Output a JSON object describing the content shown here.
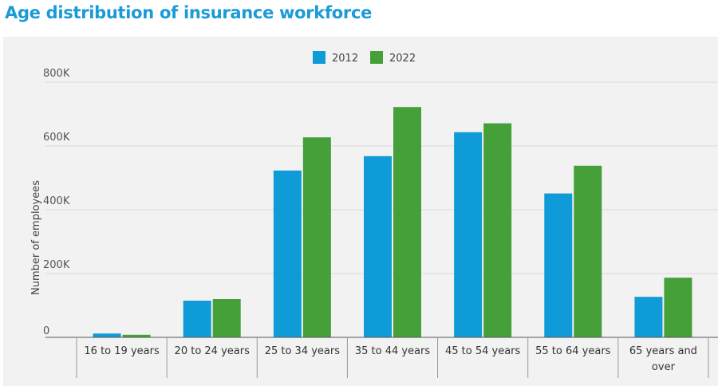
{
  "title": "Age distribution of insurance workforce",
  "chart_data": {
    "type": "bar",
    "title": "Age distribution of insurance workforce",
    "xlabel": "",
    "ylabel": "Number of employees",
    "ylim": [
      0,
      800000
    ],
    "y_ticks": [
      0,
      200000,
      400000,
      600000,
      800000
    ],
    "y_tick_labels": [
      "0",
      "200K",
      "400K",
      "600K",
      "800K"
    ],
    "grid": true,
    "legend_position": "top-center",
    "categories": [
      "16 to 19 years",
      "20 to 24 years",
      "25 to 34 years",
      "35 to 44 years",
      "45 to 54 years",
      "55 to 64 years",
      "65 years and over"
    ],
    "series": [
      {
        "name": "2012",
        "color": "#0f9ad8",
        "values": [
          12000,
          115000,
          523000,
          568000,
          643000,
          451000,
          127000
        ]
      },
      {
        "name": "2022",
        "color": "#45a03a",
        "values": [
          8000,
          120000,
          627000,
          722000,
          671000,
          538000,
          187000
        ]
      }
    ]
  }
}
